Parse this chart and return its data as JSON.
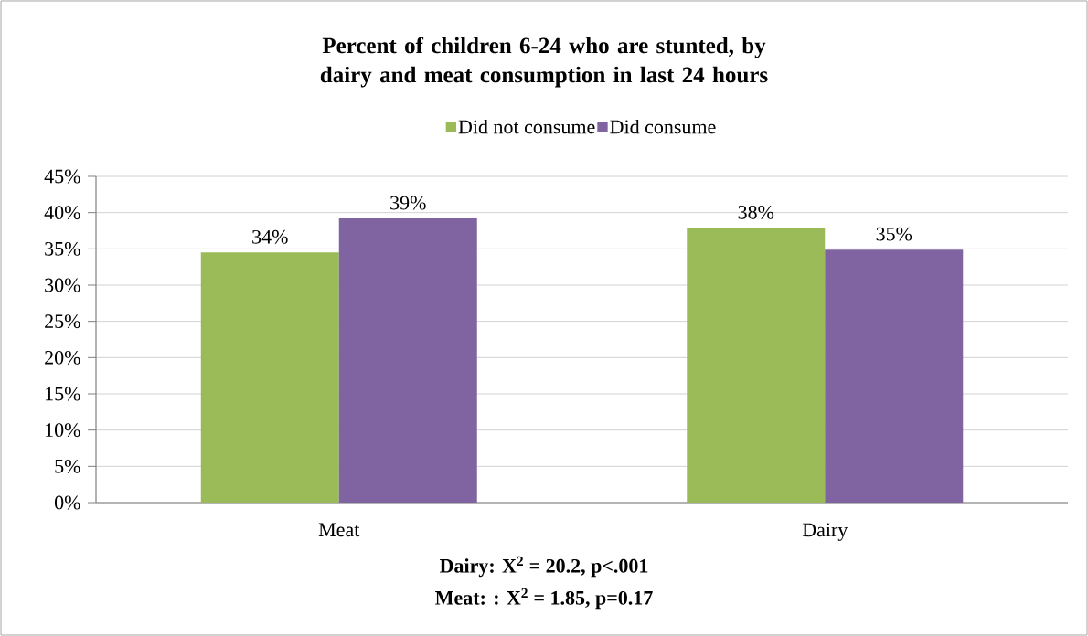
{
  "chart_data": {
    "type": "bar",
    "title": "Percent of children 6-24 who are stunted, by dairy and meat consumption in last 24 hours",
    "categories": [
      "Meat",
      "Dairy"
    ],
    "series": [
      {
        "name": "Did not consume",
        "color": "#9bbb59",
        "values": [
          34.5,
          37.9
        ],
        "value_labels": [
          "34%",
          "38%"
        ]
      },
      {
        "name": "Did consume",
        "color": "#8064a2",
        "values": [
          39.2,
          34.9
        ],
        "value_labels": [
          "39%",
          "35%"
        ]
      }
    ],
    "ylim": [
      0,
      45
    ],
    "yticks": [
      {
        "value": 0,
        "label": "0%"
      },
      {
        "value": 5,
        "label": "5%"
      },
      {
        "value": 10,
        "label": "10%"
      },
      {
        "value": 15,
        "label": "15%"
      },
      {
        "value": 20,
        "label": "20%"
      },
      {
        "value": 25,
        "label": "25%"
      },
      {
        "value": 30,
        "label": "30%"
      },
      {
        "value": 35,
        "label": "35%"
      },
      {
        "value": 40,
        "label": "40%"
      },
      {
        "value": 45,
        "label": "45%"
      }
    ],
    "grid": "y",
    "legend": "top",
    "annotations": [
      "Dairy: X$^{2}$ = 20.2, p<.001",
      "Meat: : X$^{2}$ = 1.85, p=0.17"
    ]
  }
}
